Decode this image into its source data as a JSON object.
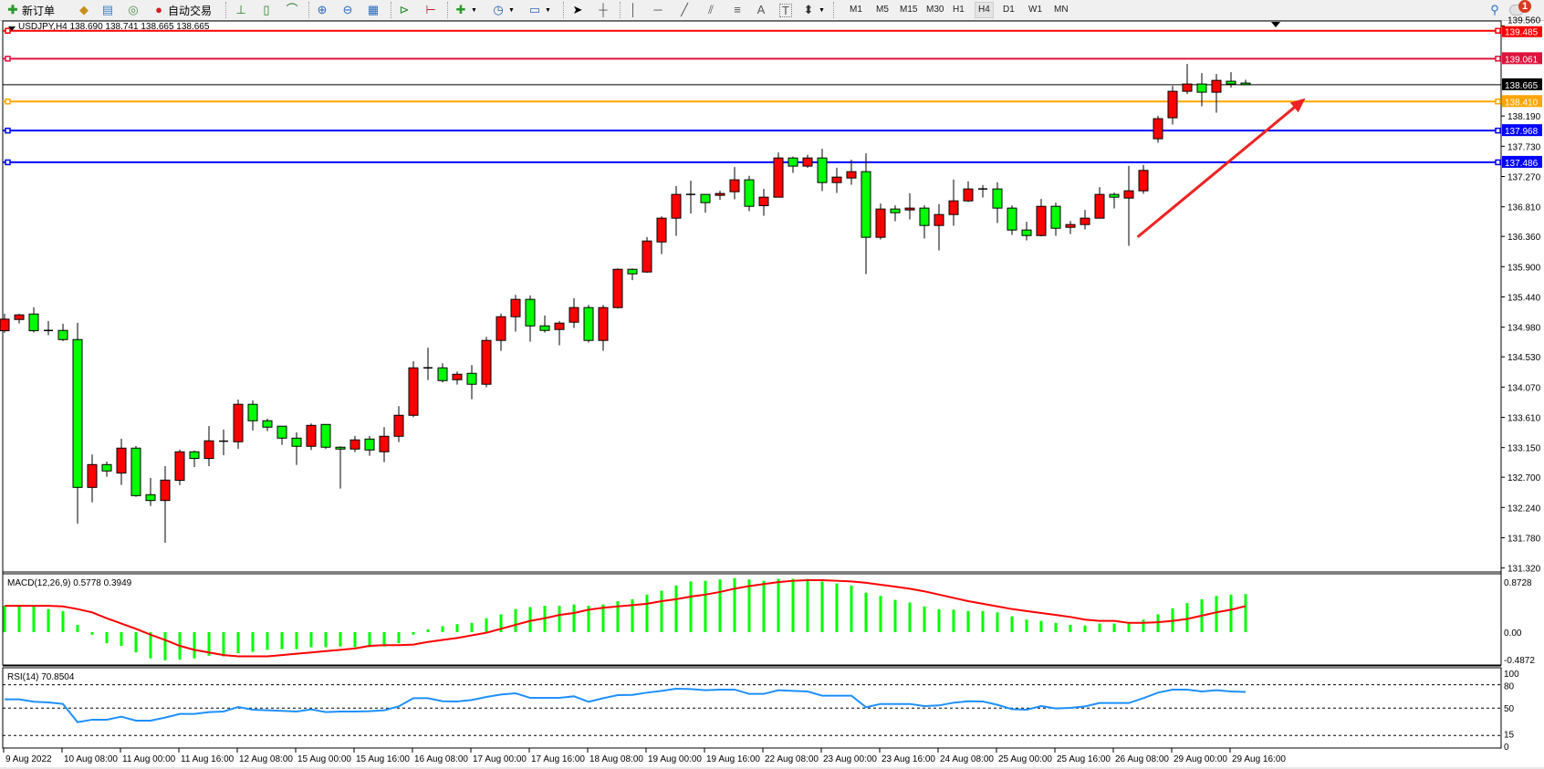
{
  "toolbar": {
    "new_order_label": "新订单",
    "auto_trading_label": "自动交易",
    "timeframes": [
      "M1",
      "M5",
      "M15",
      "M30",
      "H1",
      "H4",
      "D1",
      "W1",
      "MN"
    ],
    "active_timeframe": "H4",
    "notification_count": "1",
    "icons": [
      "new-order-icon",
      "market-watch-icon",
      "data-window-icon",
      "signals-icon",
      "auto-trading-icon",
      "bar-chart-icon",
      "candlestick-icon",
      "line-chart-icon",
      "zoom-in-icon",
      "zoom-out-icon",
      "tile-windows-icon",
      "auto-scroll-icon",
      "chart-shift-icon",
      "new-indicator-icon",
      "periods-clock-icon",
      "template-icon",
      "cursor-icon",
      "crosshair-icon",
      "vertical-line-icon",
      "horizontal-line-icon",
      "trendline-icon",
      "fibo-channel-icon",
      "fibo-retracement-icon",
      "text-icon",
      "text-label-icon",
      "arrows-icon",
      "search-icon",
      "notification-icon"
    ]
  },
  "chart": {
    "info_line": "USDJPY,H4  138.690 138.741 138.665 138.665",
    "up_color": "#ff0000",
    "down_color": "#00ff00",
    "price_axis_labels": [
      "139.560",
      "138.190",
      "137.730",
      "137.270",
      "136.810",
      "136.360",
      "135.900",
      "135.440",
      "134.980",
      "134.530",
      "134.070",
      "133.610",
      "133.150",
      "132.700",
      "132.240",
      "131.780",
      "131.320"
    ],
    "levels": [
      {
        "label": "139.485",
        "color": "#ff0000"
      },
      {
        "label": "139.061",
        "color": "#dc143c"
      },
      {
        "label": "138.665",
        "color": "#000000"
      },
      {
        "label": "138.410",
        "color": "#ffa500"
      },
      {
        "label": "137.968",
        "color": "#0000ff"
      },
      {
        "label": "137.486",
        "color": "#0000ff"
      }
    ]
  },
  "chart_data": [
    {
      "type": "candlestick",
      "symbol": "USDJPY",
      "timeframe": "H4",
      "ylim": [
        131.26,
        139.62
      ],
      "x_ticks": [
        {
          "label": "9 Aug 2022",
          "index": 0
        },
        {
          "label": "10 Aug 08:00",
          "index": 4
        },
        {
          "label": "11 Aug 00:00",
          "index": 8
        },
        {
          "label": "11 Aug 16:00",
          "index": 12
        },
        {
          "label": "12 Aug 08:00",
          "index": 16
        },
        {
          "label": "15 Aug 00:00",
          "index": 20
        },
        {
          "label": "15 Aug 16:00",
          "index": 24
        },
        {
          "label": "16 Aug 08:00",
          "index": 28
        },
        {
          "label": "17 Aug 00:00",
          "index": 32
        },
        {
          "label": "17 Aug 16:00",
          "index": 36
        },
        {
          "label": "18 Aug 08:00",
          "index": 40
        },
        {
          "label": "19 Aug 00:00",
          "index": 44
        },
        {
          "label": "19 Aug 16:00",
          "index": 48
        },
        {
          "label": "22 Aug 08:00",
          "index": 52
        },
        {
          "label": "23 Aug 00:00",
          "index": 56
        },
        {
          "label": "23 Aug 16:00",
          "index": 60
        },
        {
          "label": "24 Aug 08:00",
          "index": 64
        },
        {
          "label": "25 Aug 00:00",
          "index": 68
        },
        {
          "label": "25 Aug 16:00",
          "index": 72
        },
        {
          "label": "26 Aug 08:00",
          "index": 76
        },
        {
          "label": "29 Aug 00:00",
          "index": 80
        },
        {
          "label": "29 Aug 16:00",
          "index": 84
        }
      ],
      "ohlc": [
        [
          134.926,
          135.185,
          134.894,
          135.102
        ],
        [
          135.097,
          135.185,
          135.037,
          135.167
        ],
        [
          135.18,
          135.282,
          134.899,
          134.926
        ],
        [
          134.93,
          135.074,
          134.857,
          134.93
        ],
        [
          134.931,
          135.033,
          134.769,
          134.792
        ],
        [
          134.792,
          135.046,
          131.995,
          132.545
        ],
        [
          132.545,
          133.045,
          132.319,
          132.892
        ],
        [
          132.892,
          132.938,
          132.707,
          132.795
        ],
        [
          132.763,
          133.285,
          132.582,
          133.142
        ],
        [
          133.142,
          133.174,
          132.402,
          132.42
        ],
        [
          132.434,
          132.689,
          132.263,
          132.346
        ],
        [
          132.346,
          132.869,
          131.704,
          132.656
        ],
        [
          132.652,
          133.119,
          132.578,
          133.086
        ],
        [
          133.086,
          133.105,
          132.855,
          132.985
        ],
        [
          132.985,
          133.479,
          132.869,
          133.253
        ],
        [
          133.248,
          133.424,
          133.035,
          133.248
        ],
        [
          133.239,
          133.881,
          133.132,
          133.808
        ],
        [
          133.808,
          133.868,
          133.41,
          133.558
        ],
        [
          133.558,
          133.59,
          133.4,
          133.461
        ],
        [
          133.475,
          133.475,
          133.193,
          133.294
        ],
        [
          133.294,
          133.382,
          132.887,
          133.17
        ],
        [
          133.17,
          133.516,
          133.114,
          133.488
        ],
        [
          133.502,
          133.502,
          133.128,
          133.156
        ],
        [
          133.156,
          133.17,
          132.527,
          133.128
        ],
        [
          133.128,
          133.327,
          133.082,
          133.267
        ],
        [
          133.28,
          133.327,
          133.026,
          133.114
        ],
        [
          133.087,
          133.461,
          132.929,
          133.322
        ],
        [
          133.322,
          133.78,
          133.234,
          133.641
        ],
        [
          133.641,
          134.46,
          133.613,
          134.362
        ],
        [
          134.362,
          134.668,
          134.178,
          134.362
        ],
        [
          134.362,
          134.432,
          134.141,
          134.168
        ],
        [
          134.182,
          134.307,
          134.108,
          134.265
        ],
        [
          134.279,
          134.404,
          133.886,
          134.113
        ],
        [
          134.113,
          134.834,
          134.067,
          134.779
        ],
        [
          134.779,
          135.185,
          134.621,
          135.139
        ],
        [
          135.139,
          135.472,
          134.913,
          135.403
        ],
        [
          135.403,
          135.463,
          134.76,
          135.0
        ],
        [
          135.0,
          135.158,
          134.899,
          134.931
        ],
        [
          134.945,
          135.074,
          134.705,
          135.042
        ],
        [
          135.056,
          135.421,
          134.968,
          135.278
        ],
        [
          135.278,
          135.319,
          134.746,
          134.779
        ],
        [
          134.779,
          135.319,
          134.621,
          135.278
        ],
        [
          135.278,
          135.874,
          135.264,
          135.86
        ],
        [
          135.86,
          135.874,
          135.694,
          135.791
        ],
        [
          135.819,
          136.35,
          135.805,
          136.29
        ],
        [
          136.276,
          136.665,
          136.092,
          136.637
        ],
        [
          136.637,
          137.127,
          136.369,
          136.998
        ],
        [
          136.998,
          137.206,
          136.706,
          136.998
        ],
        [
          136.998,
          136.998,
          136.72,
          136.873
        ],
        [
          136.984,
          137.053,
          136.915,
          137.012
        ],
        [
          137.039,
          137.414,
          136.924,
          137.22
        ],
        [
          137.22,
          137.28,
          136.743,
          136.817
        ],
        [
          136.827,
          137.081,
          136.674,
          136.956
        ],
        [
          136.956,
          137.636,
          136.956,
          137.552
        ],
        [
          137.552,
          137.571,
          137.326,
          137.428
        ],
        [
          137.428,
          137.599,
          137.4,
          137.552
        ],
        [
          137.552,
          137.691,
          137.048,
          137.178
        ],
        [
          137.178,
          137.404,
          137.021,
          137.261
        ],
        [
          137.247,
          137.525,
          137.146,
          137.344
        ],
        [
          137.344,
          137.622,
          135.786,
          136.346
        ],
        [
          136.346,
          136.859,
          136.313,
          136.776
        ],
        [
          136.776,
          136.831,
          136.591,
          136.72
        ],
        [
          136.762,
          137.016,
          136.618,
          136.79
        ],
        [
          136.79,
          136.831,
          136.327,
          136.526
        ],
        [
          136.526,
          136.85,
          136.147,
          136.692
        ],
        [
          136.692,
          137.224,
          136.521,
          136.9
        ],
        [
          136.9,
          137.196,
          136.882,
          137.081
        ],
        [
          137.081,
          137.141,
          136.951,
          137.081
        ],
        [
          137.081,
          137.183,
          136.563,
          136.79
        ],
        [
          136.79,
          136.831,
          136.383,
          136.457
        ],
        [
          136.457,
          136.582,
          136.3,
          136.373
        ],
        [
          136.373,
          136.928,
          136.36,
          136.817
        ],
        [
          136.817,
          136.873,
          136.369,
          136.484
        ],
        [
          136.498,
          136.595,
          136.397,
          136.54
        ],
        [
          136.54,
          136.762,
          136.466,
          136.637
        ],
        [
          136.637,
          137.109,
          136.637,
          136.998
        ],
        [
          136.998,
          137.025,
          136.785,
          136.956
        ],
        [
          136.942,
          137.432,
          136.216,
          137.053
        ],
        [
          137.053,
          137.446,
          137.007,
          137.363
        ],
        [
          137.844,
          138.19,
          137.784,
          138.149
        ],
        [
          138.163,
          138.648,
          138.061,
          138.565
        ],
        [
          138.565,
          138.981,
          138.523,
          138.676
        ],
        [
          138.676,
          138.842,
          138.338,
          138.551
        ],
        [
          138.551,
          138.828,
          138.241,
          138.731
        ],
        [
          138.718,
          138.856,
          138.62,
          138.676
        ],
        [
          138.69,
          138.741,
          138.665,
          138.665
        ]
      ],
      "horizontal_levels": [
        139.485,
        139.061,
        138.665,
        138.41,
        137.968,
        137.486
      ],
      "arrow_annotation": {
        "from": {
          "index": 77.6,
          "price": 136.35
        },
        "to": {
          "index": 89.1,
          "price": 138.46
        },
        "color": "#ee2222"
      }
    },
    {
      "type": "bar+line",
      "title": "MACD(12,26,9) 0.5778 0.3949",
      "ylim": [
        -0.4872,
        0.8728
      ],
      "y_tick_labels": [
        "0.8728",
        "0.00",
        "-0.4872"
      ],
      "histogram_color": "#00ff00",
      "signal_color": "#ff0000",
      "macd": [
        0.4,
        0.4,
        0.4,
        0.35,
        0.32,
        0.11,
        -0.04,
        -0.17,
        -0.21,
        -0.31,
        -0.4,
        -0.43,
        -0.42,
        -0.4,
        -0.36,
        -0.37,
        -0.32,
        -0.3,
        -0.27,
        -0.26,
        -0.26,
        -0.23,
        -0.23,
        -0.22,
        -0.23,
        -0.23,
        -0.22,
        -0.17,
        -0.04,
        0.04,
        0.09,
        0.12,
        0.14,
        0.21,
        0.27,
        0.35,
        0.38,
        0.4,
        0.4,
        0.42,
        0.4,
        0.42,
        0.47,
        0.5,
        0.57,
        0.63,
        0.71,
        0.77,
        0.78,
        0.8,
        0.82,
        0.8,
        0.78,
        0.81,
        0.81,
        0.81,
        0.77,
        0.74,
        0.71,
        0.6,
        0.55,
        0.49,
        0.45,
        0.39,
        0.35,
        0.34,
        0.32,
        0.32,
        0.3,
        0.24,
        0.19,
        0.17,
        0.14,
        0.11,
        0.1,
        0.13,
        0.13,
        0.15,
        0.19,
        0.27,
        0.36,
        0.44,
        0.5,
        0.55,
        0.57,
        0.5778
      ],
      "signal": [
        0.4,
        0.4,
        0.4,
        0.4,
        0.39,
        0.35,
        0.3,
        0.21,
        0.13,
        0.05,
        -0.04,
        -0.12,
        -0.21,
        -0.27,
        -0.31,
        -0.35,
        -0.37,
        -0.37,
        -0.37,
        -0.35,
        -0.33,
        -0.31,
        -0.29,
        -0.27,
        -0.25,
        -0.21,
        -0.2,
        -0.2,
        -0.19,
        -0.15,
        -0.12,
        -0.09,
        -0.05,
        -0.01,
        0.05,
        0.11,
        0.17,
        0.21,
        0.26,
        0.29,
        0.34,
        0.37,
        0.39,
        0.41,
        0.43,
        0.47,
        0.5,
        0.54,
        0.57,
        0.61,
        0.66,
        0.7,
        0.73,
        0.76,
        0.78,
        0.79,
        0.79,
        0.78,
        0.77,
        0.75,
        0.72,
        0.69,
        0.66,
        0.62,
        0.57,
        0.52,
        0.47,
        0.43,
        0.39,
        0.35,
        0.32,
        0.29,
        0.26,
        0.23,
        0.19,
        0.17,
        0.17,
        0.14,
        0.14,
        0.15,
        0.17,
        0.2,
        0.25,
        0.3,
        0.34,
        0.3949
      ]
    },
    {
      "type": "line",
      "title": "RSI(14) 70.8504",
      "ylim": [
        0,
        100
      ],
      "y_tick_labels": [
        "100",
        "80",
        "50",
        "15",
        "0"
      ],
      "levels": [
        80,
        50,
        15
      ],
      "line_color": "#1e90ff",
      "values": [
        61.3,
        61.3,
        58.2,
        57.4,
        55.4,
        32.0,
        35.2,
        35.2,
        39.1,
        34.0,
        34.0,
        37.9,
        42.6,
        42.6,
        44.9,
        45.7,
        51.5,
        48.0,
        47.3,
        46.5,
        45.7,
        48.4,
        44.9,
        45.7,
        45.7,
        46.1,
        47.3,
        52.3,
        62.8,
        62.8,
        58.9,
        58.6,
        60.5,
        64.4,
        67.5,
        69.1,
        63.2,
        63.2,
        63.2,
        65.2,
        58.2,
        62.8,
        66.7,
        67.1,
        69.9,
        72.2,
        74.9,
        74.5,
        73.0,
        73.8,
        73.8,
        68.3,
        68.3,
        73.0,
        72.2,
        71.4,
        66.0,
        66.0,
        66.0,
        51.2,
        55.4,
        55.4,
        55.4,
        52.7,
        53.5,
        57.0,
        58.9,
        58.6,
        54.3,
        48.8,
        48.0,
        52.7,
        49.6,
        50.4,
        52.3,
        56.6,
        56.6,
        56.6,
        62.8,
        69.9,
        73.8,
        73.8,
        71.4,
        73.0,
        71.4,
        70.85
      ]
    }
  ]
}
